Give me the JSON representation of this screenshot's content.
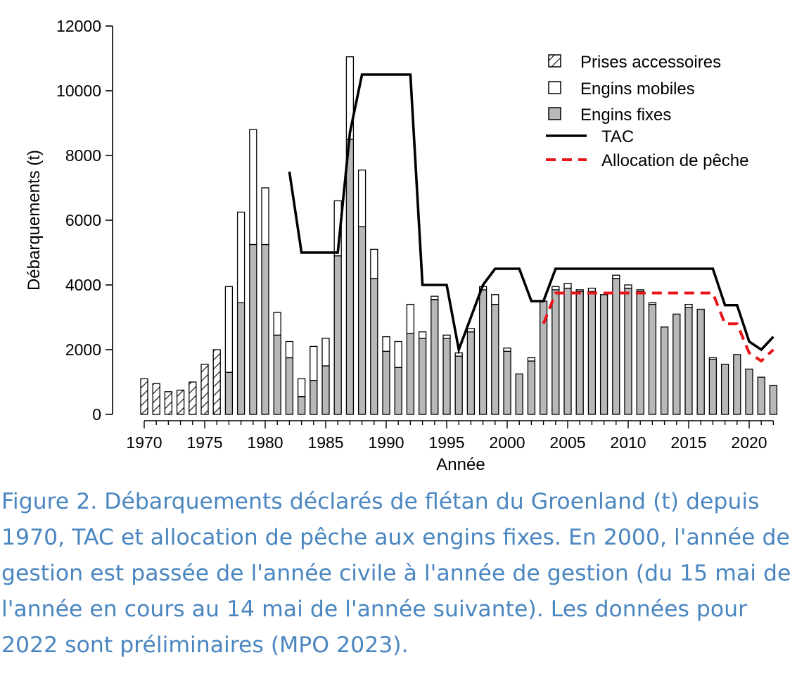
{
  "chart_data": {
    "type": "bar",
    "stacked": true,
    "xlabel": "Année",
    "ylabel": "Débarquements (t)",
    "ylim": [
      0,
      12000
    ],
    "yticks": [
      0,
      2000,
      4000,
      6000,
      8000,
      10000,
      12000
    ],
    "xlim": [
      1970,
      2022
    ],
    "xticks": [
      1970,
      1975,
      1980,
      1985,
      1990,
      1995,
      2000,
      2005,
      2010,
      2015,
      2020
    ],
    "grid": false,
    "legend_position": "top-right",
    "years": [
      1970,
      1971,
      1972,
      1973,
      1974,
      1975,
      1976,
      1977,
      1978,
      1979,
      1980,
      1981,
      1982,
      1983,
      1984,
      1985,
      1986,
      1987,
      1988,
      1989,
      1990,
      1991,
      1992,
      1993,
      1994,
      1995,
      1996,
      1997,
      1998,
      1999,
      2000,
      2001,
      2002,
      2003,
      2004,
      2005,
      2006,
      2007,
      2008,
      2009,
      2010,
      2011,
      2012,
      2013,
      2014,
      2015,
      2016,
      2017,
      2018,
      2019,
      2020,
      2021,
      2022
    ],
    "series": [
      {
        "name": "Prises accessoires",
        "pattern": "hatch",
        "color": "#ffffff",
        "values": [
          1100,
          950,
          700,
          750,
          1000,
          1550,
          2000,
          0,
          0,
          0,
          0,
          0,
          0,
          0,
          0,
          0,
          0,
          0,
          0,
          0,
          0,
          0,
          0,
          0,
          0,
          0,
          0,
          0,
          0,
          0,
          0,
          0,
          0,
          0,
          0,
          0,
          0,
          0,
          0,
          0,
          0,
          0,
          0,
          0,
          0,
          0,
          0,
          0,
          0,
          0,
          0,
          0,
          0
        ]
      },
      {
        "name": "Engins fixes",
        "color": "#b8b8b8",
        "values": [
          0,
          0,
          0,
          0,
          0,
          0,
          0,
          1300,
          3450,
          5250,
          5250,
          2450,
          1750,
          550,
          1050,
          1500,
          4900,
          8500,
          5800,
          4200,
          1950,
          1450,
          2500,
          2350,
          3550,
          2350,
          1800,
          2550,
          3850,
          3400,
          1950,
          1250,
          1650,
          3500,
          3850,
          3900,
          3800,
          3800,
          3700,
          4200,
          3900,
          3800,
          3400,
          2700,
          3100,
          3300,
          3250,
          1700,
          1550,
          1850,
          1400,
          1150,
          900
        ]
      },
      {
        "name": "Engins mobiles",
        "color": "#ffffff",
        "values": [
          0,
          0,
          0,
          0,
          0,
          0,
          0,
          2650,
          2800,
          3550,
          1750,
          700,
          500,
          550,
          1050,
          850,
          1700,
          2550,
          1750,
          900,
          450,
          800,
          900,
          200,
          100,
          100,
          100,
          100,
          100,
          300,
          100,
          0,
          100,
          0,
          100,
          150,
          50,
          100,
          0,
          100,
          100,
          50,
          50,
          0,
          0,
          100,
          0,
          50,
          0,
          0,
          0,
          0,
          0
        ]
      }
    ],
    "lines": [
      {
        "name": "TAC",
        "color": "#000000",
        "style": "solid",
        "points": [
          [
            1982,
            7500
          ],
          [
            1983,
            5000
          ],
          [
            1984,
            5000
          ],
          [
            1985,
            5000
          ],
          [
            1986,
            5000
          ],
          [
            1987,
            8700
          ],
          [
            1988,
            10500
          ],
          [
            1989,
            10500
          ],
          [
            1990,
            10500
          ],
          [
            1991,
            10500
          ],
          [
            1992,
            10500
          ],
          [
            1993,
            4000
          ],
          [
            1994,
            4000
          ],
          [
            1995,
            4000
          ],
          [
            1996,
            2000
          ],
          [
            1997,
            3000
          ],
          [
            1998,
            4000
          ],
          [
            1999,
            4500
          ],
          [
            2000,
            4500
          ],
          [
            2001,
            4500
          ],
          [
            2002,
            3500
          ],
          [
            2003,
            3500
          ],
          [
            2004,
            4500
          ],
          [
            2005,
            4500
          ],
          [
            2006,
            4500
          ],
          [
            2007,
            4500
          ],
          [
            2008,
            4500
          ],
          [
            2009,
            4500
          ],
          [
            2010,
            4500
          ],
          [
            2011,
            4500
          ],
          [
            2012,
            4500
          ],
          [
            2013,
            4500
          ],
          [
            2014,
            4500
          ],
          [
            2015,
            4500
          ],
          [
            2016,
            4500
          ],
          [
            2017,
            4500
          ],
          [
            2018,
            3375
          ],
          [
            2019,
            3375
          ],
          [
            2020,
            2250
          ],
          [
            2021,
            2000
          ],
          [
            2022,
            2400
          ]
        ]
      },
      {
        "name": "Allocation de pêche",
        "color": "#e8141a",
        "style": "dashed",
        "points": [
          [
            2003,
            2800
          ],
          [
            2004,
            3750
          ],
          [
            2005,
            3750
          ],
          [
            2006,
            3750
          ],
          [
            2007,
            3750
          ],
          [
            2008,
            3750
          ],
          [
            2009,
            3750
          ],
          [
            2010,
            3750
          ],
          [
            2011,
            3750
          ],
          [
            2012,
            3750
          ],
          [
            2013,
            3750
          ],
          [
            2014,
            3750
          ],
          [
            2015,
            3750
          ],
          [
            2016,
            3750
          ],
          [
            2017,
            3750
          ],
          [
            2018,
            2800
          ],
          [
            2019,
            2800
          ],
          [
            2020,
            1900
          ],
          [
            2021,
            1650
          ],
          [
            2022,
            2000
          ]
        ]
      }
    ]
  },
  "caption": "Figure 2. Débarquements déclarés de flétan du Groenland (t) depuis 1970, TAC et allocation de pêche aux engins fixes. En 2000, l'année de gestion est passée de l'année civile à l'année de gestion (du 15 mai de l'année en cours au 14 mai de l'année suivante). Les données pour 2022 sont préliminaires (MPO 2023)."
}
